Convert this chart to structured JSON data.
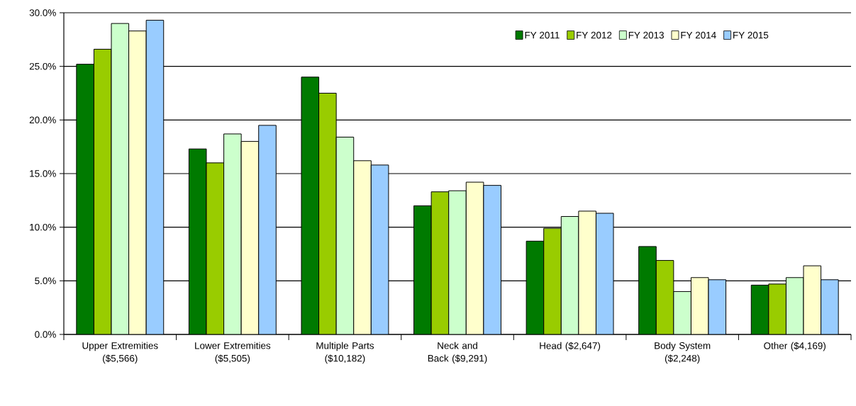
{
  "chart_data": {
    "type": "bar",
    "categories": [
      "Upper Extremities ($5,566)",
      "Lower Extremities ($5,505)",
      "Multiple Parts ($10,182)",
      "Neck and Back ($9,291)",
      "Head ($2,647)",
      "Body System ($2,248)",
      "Other ($4,169)"
    ],
    "series": [
      {
        "name": "FY 2011",
        "color": "#007a00",
        "values": [
          25.2,
          17.3,
          24.0,
          12.0,
          8.7,
          8.2,
          4.6
        ]
      },
      {
        "name": "FY 2012",
        "color": "#99cc00",
        "values": [
          26.6,
          16.0,
          22.5,
          13.3,
          9.9,
          6.9,
          4.7
        ]
      },
      {
        "name": "FY 2013",
        "color": "#ccffcc",
        "values": [
          29.0,
          18.7,
          18.4,
          13.4,
          11.0,
          4.0,
          5.3
        ]
      },
      {
        "name": "FY 2014",
        "color": "#ffffcc",
        "values": [
          28.3,
          18.0,
          16.2,
          14.2,
          11.5,
          5.3,
          6.4
        ]
      },
      {
        "name": "FY 2015",
        "color": "#99ccff",
        "values": [
          29.3,
          19.5,
          15.8,
          13.9,
          11.3,
          5.1,
          5.1
        ]
      }
    ],
    "ylim": [
      0,
      30
    ],
    "yticks": [
      {
        "value": 0,
        "label": "0.0%"
      },
      {
        "value": 5,
        "label": "5.0%"
      },
      {
        "value": 10,
        "label": "10.0%"
      },
      {
        "value": 15,
        "label": "15.0%"
      },
      {
        "value": 20,
        "label": "20.0%"
      },
      {
        "value": 25,
        "label": "25.0%"
      },
      {
        "value": 30,
        "label": "30.0%"
      }
    ],
    "grid": "y",
    "legend": "top right"
  }
}
